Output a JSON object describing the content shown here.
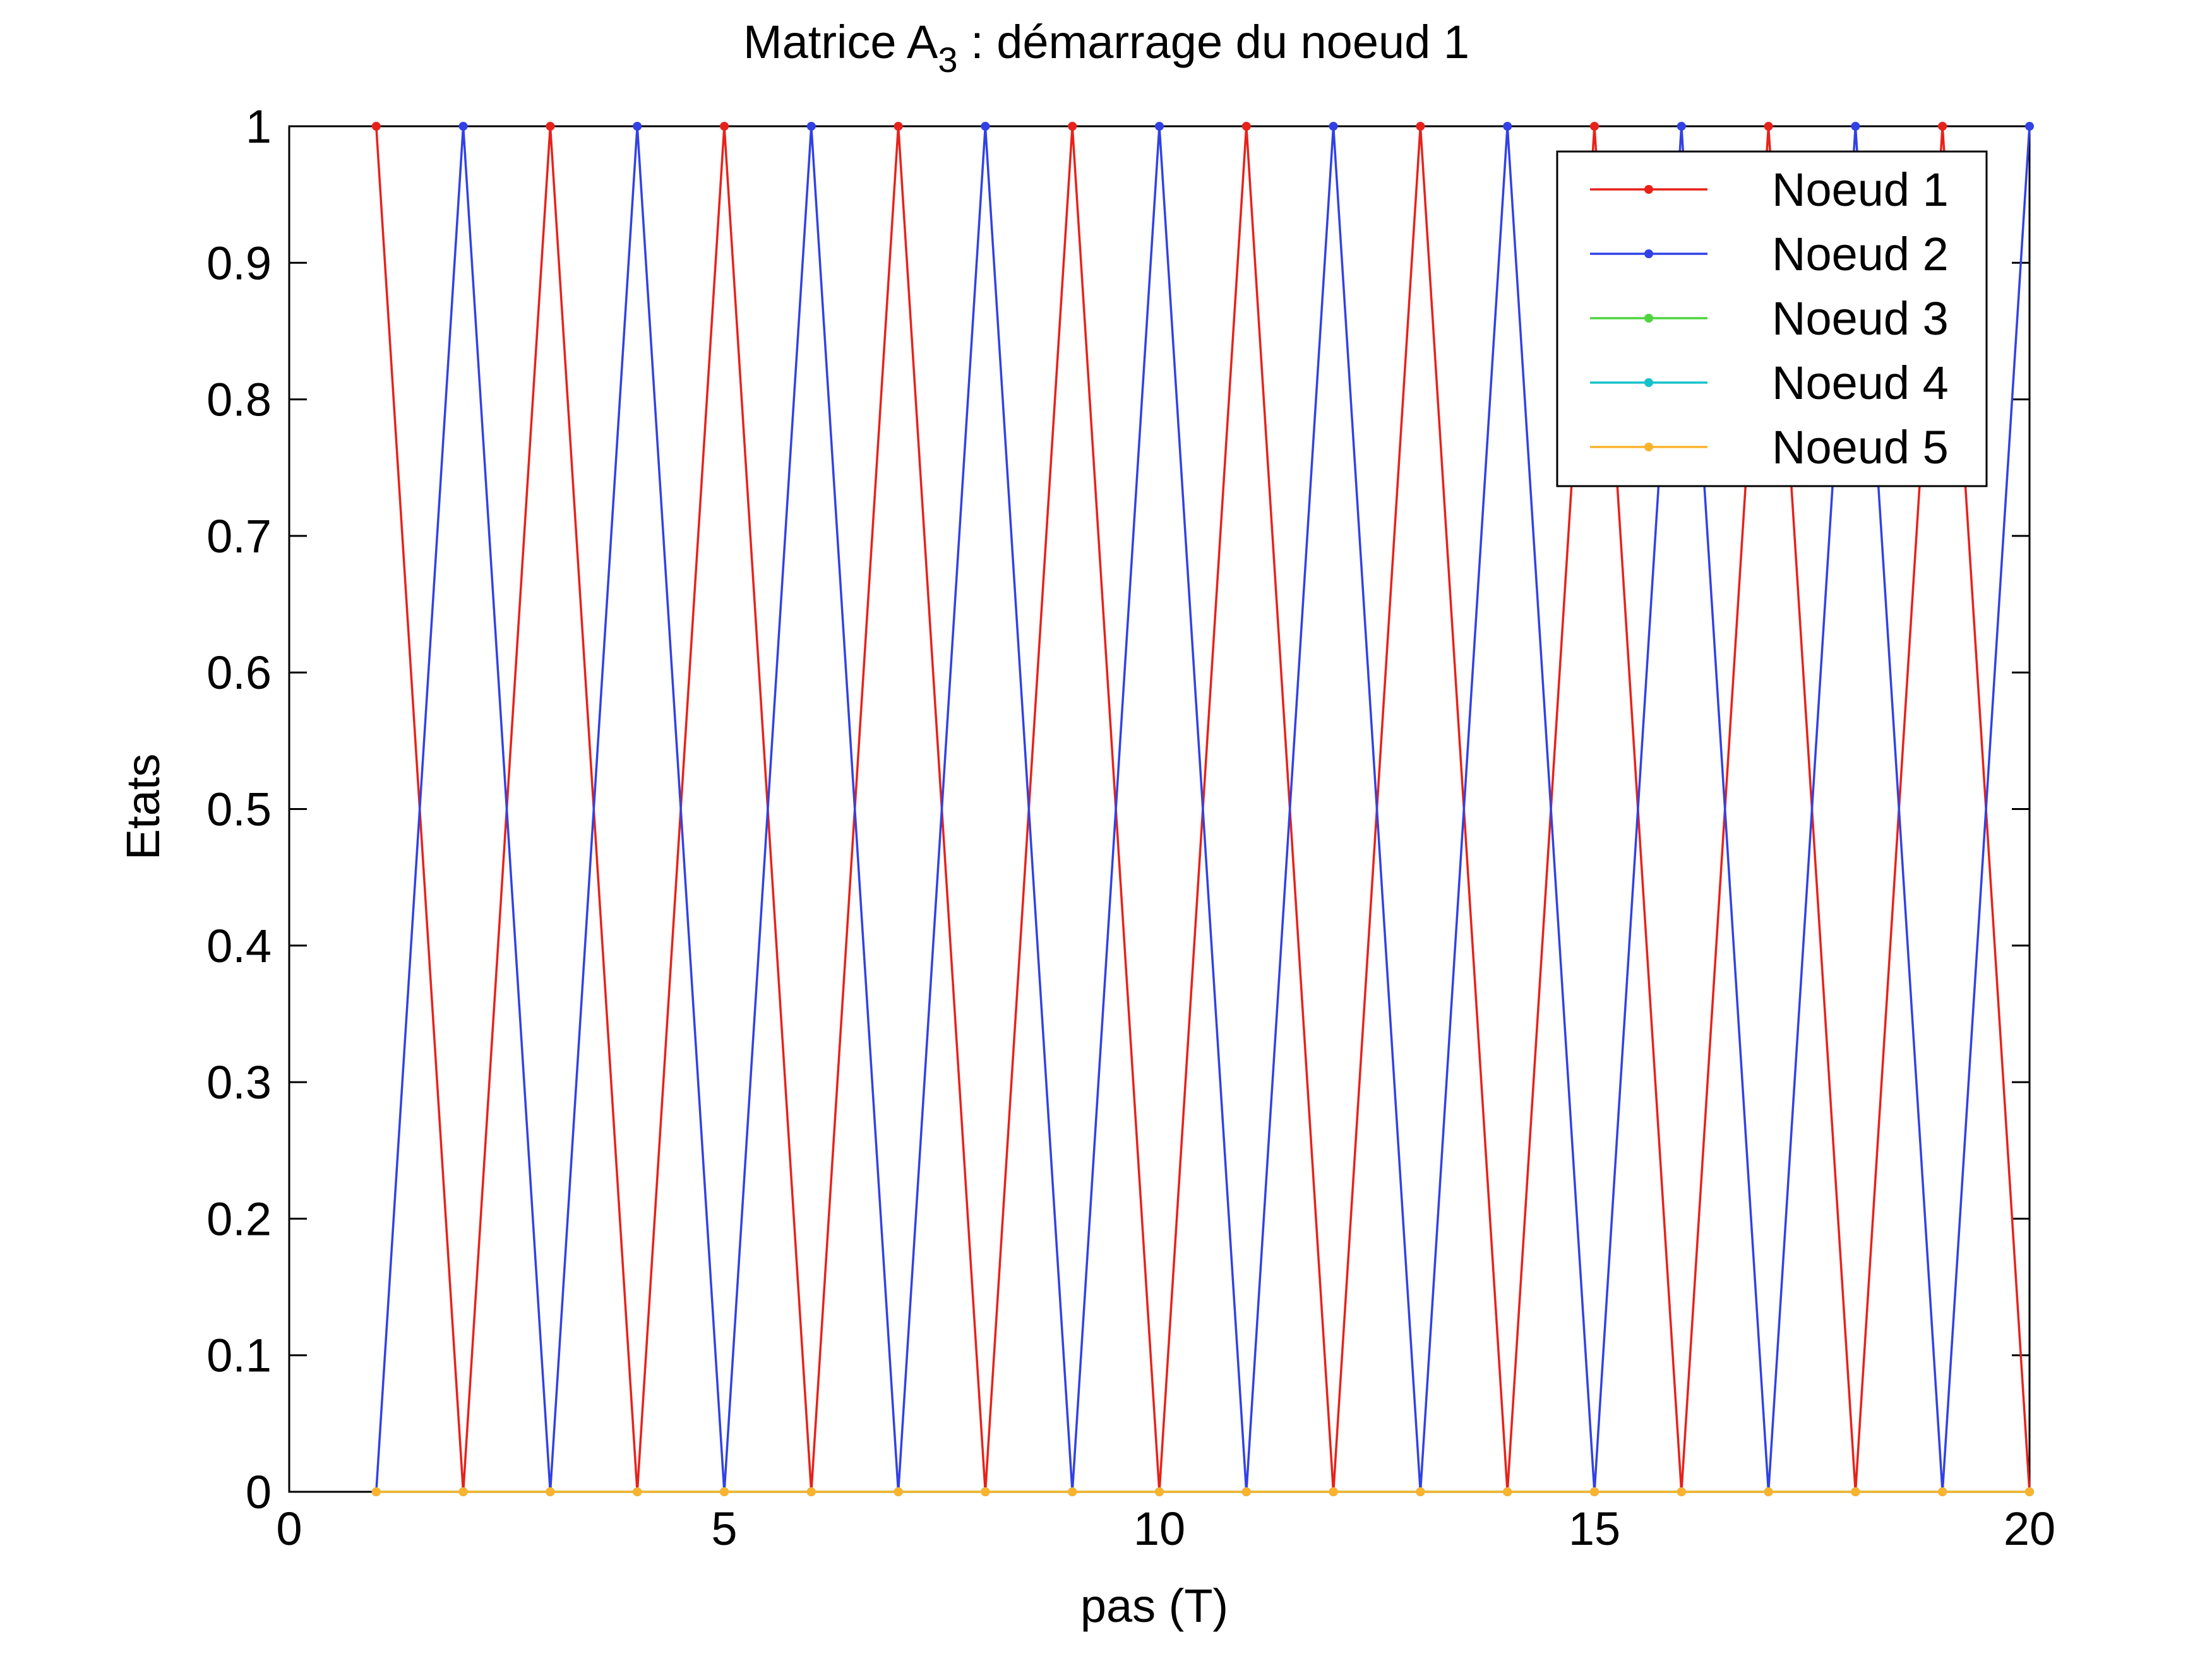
{
  "chart_data": {
    "type": "line",
    "title": {
      "main": "Matrice A",
      "subscript": "3",
      "rest": " : démarrage du noeud 1"
    },
    "xlabel": "pas (T)",
    "ylabel": "Etats",
    "xlim": [
      0,
      20
    ],
    "ylim": [
      0,
      1
    ],
    "xticks": [
      0,
      5,
      10,
      15,
      20
    ],
    "yticks": [
      0,
      0.1,
      0.2,
      0.3,
      0.4,
      0.5,
      0.6,
      0.7,
      0.8,
      0.9,
      1
    ],
    "legend_position": "top-right",
    "marker": "dot",
    "x": [
      1,
      2,
      3,
      4,
      5,
      6,
      7,
      8,
      9,
      10,
      11,
      12,
      13,
      14,
      15,
      16,
      17,
      18,
      19,
      20
    ],
    "series": [
      {
        "name": "Noeud 1",
        "color": "#e8211a",
        "values": [
          1,
          0,
          1,
          0,
          1,
          0,
          1,
          0,
          1,
          0,
          1,
          0,
          1,
          0,
          1,
          0,
          1,
          0,
          1,
          0
        ]
      },
      {
        "name": "Noeud 2",
        "color": "#3141e6",
        "values": [
          0,
          1,
          0,
          1,
          0,
          1,
          0,
          1,
          0,
          1,
          0,
          1,
          0,
          1,
          0,
          1,
          0,
          1,
          0,
          1
        ]
      },
      {
        "name": "Noeud 3",
        "color": "#4fd33e",
        "values": [
          0,
          0,
          0,
          0,
          0,
          0,
          0,
          0,
          0,
          0,
          0,
          0,
          0,
          0,
          0,
          0,
          0,
          0,
          0,
          0
        ]
      },
      {
        "name": "Noeud 4",
        "color": "#17c2c9",
        "values": [
          0,
          0,
          0,
          0,
          0,
          0,
          0,
          0,
          0,
          0,
          0,
          0,
          0,
          0,
          0,
          0,
          0,
          0,
          0,
          0
        ]
      },
      {
        "name": "Noeud 5",
        "color": "#fbb32e",
        "values": [
          0,
          0,
          0,
          0,
          0,
          0,
          0,
          0,
          0,
          0,
          0,
          0,
          0,
          0,
          0,
          0,
          0,
          0,
          0,
          0
        ]
      }
    ]
  }
}
